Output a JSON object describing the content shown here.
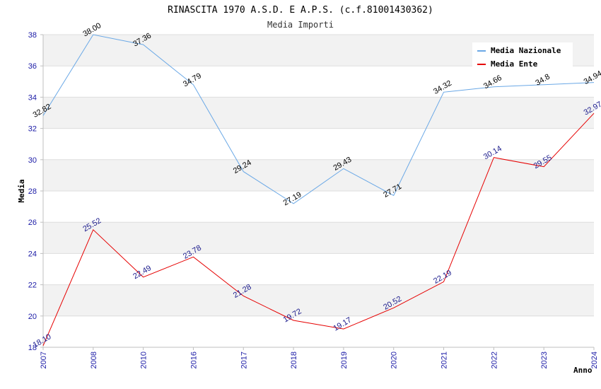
{
  "chart_data": {
    "type": "line",
    "title": "RINASCITA 1970 A.S.D. E A.P.S. (c.f.81001430362)",
    "subtitle": "Media Importi",
    "xlabel": "Anno",
    "ylabel": "Media",
    "categories": [
      "2007",
      "2008",
      "2010",
      "2016",
      "2017",
      "2018",
      "2019",
      "2020",
      "2021",
      "2022",
      "2023",
      "2024"
    ],
    "ylim": [
      18,
      38
    ],
    "yticks": [
      18,
      20,
      22,
      24,
      26,
      28,
      30,
      32,
      34,
      36,
      38
    ],
    "grid": true,
    "legend_position": "top-right",
    "series": [
      {
        "name": "Media Nazionale",
        "color": "#6aa8e6",
        "values": [
          32.82,
          38.0,
          37.36,
          34.79,
          29.24,
          27.19,
          29.43,
          27.71,
          34.32,
          34.66,
          34.8,
          34.94
        ],
        "labels": [
          "32.82",
          "38.00",
          "37.36",
          "34.79",
          "29.24",
          "27.19",
          "29.43",
          "27.71",
          "34.32",
          "34.66",
          "34.8",
          "34.94"
        ]
      },
      {
        "name": "Media Ente",
        "color": "#e60000",
        "values": [
          18.1,
          25.52,
          22.49,
          23.78,
          21.28,
          19.72,
          19.17,
          20.52,
          22.19,
          30.14,
          29.55,
          32.97
        ],
        "labels": [
          "18.10",
          "25.52",
          "22.49",
          "23.78",
          "21.28",
          "19.72",
          "19.17",
          "20.52",
          "22.19",
          "30.14",
          "29.55",
          "32.97"
        ]
      }
    ]
  }
}
